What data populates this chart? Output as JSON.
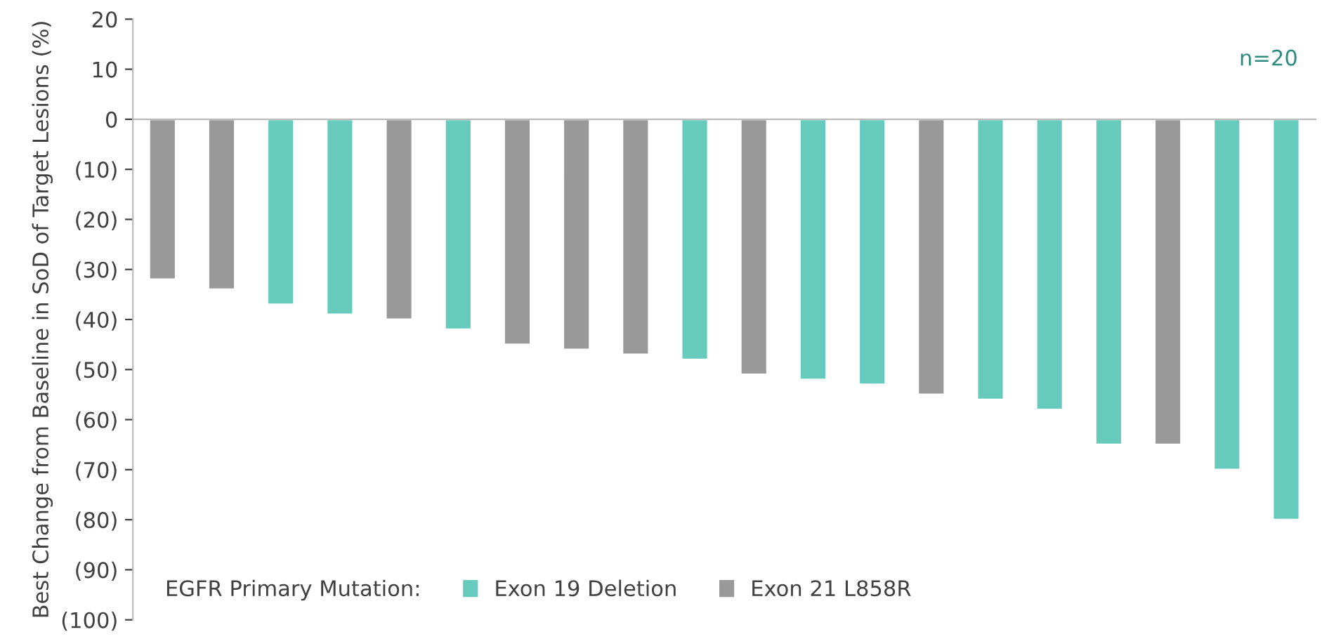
{
  "chart_data": {
    "type": "bar",
    "ylabel": "Best Change from Baseline in SoD of Target Lesions (%)",
    "legend_title": "EGFR Primary Mutation:",
    "legend": "bottom",
    "annotations": [
      "n=20"
    ],
    "categories": [
      null,
      null,
      null,
      null,
      null,
      null,
      null,
      null,
      null,
      null,
      null,
      null,
      null,
      null,
      null,
      null,
      null,
      null,
      null,
      null
    ],
    "series": [
      {
        "name": "Exon 19 Deletion",
        "color": "#66cbbd",
        "values": [
          null,
          null,
          -37,
          -39,
          null,
          -42,
          null,
          null,
          null,
          -48,
          null,
          -52,
          -53,
          null,
          -56,
          -58,
          -65,
          null,
          -70,
          -80
        ]
      },
      {
        "name": "Exon 21 L858R",
        "color": "#999999",
        "values": [
          -32,
          -34,
          null,
          null,
          -40,
          null,
          -45,
          -46,
          -47,
          null,
          -51,
          null,
          null,
          -55,
          null,
          null,
          null,
          -65,
          null,
          null
        ]
      }
    ],
    "ylim": [
      -100,
      20
    ],
    "yticks": [
      20,
      10,
      0,
      {
        "value": -10,
        "label": "(10)"
      },
      {
        "value": -20,
        "label": "(20)"
      },
      {
        "value": -30,
        "label": "(30)"
      },
      {
        "value": -40,
        "label": "(40)"
      },
      {
        "value": -50,
        "label": "(50)"
      },
      {
        "value": -60,
        "label": "(60)"
      },
      {
        "value": -70,
        "label": "(70)"
      },
      {
        "value": -80,
        "label": "(80)"
      },
      {
        "value": -90,
        "label": "(90)"
      },
      {
        "value": -100,
        "label": "(100)"
      }
    ]
  }
}
